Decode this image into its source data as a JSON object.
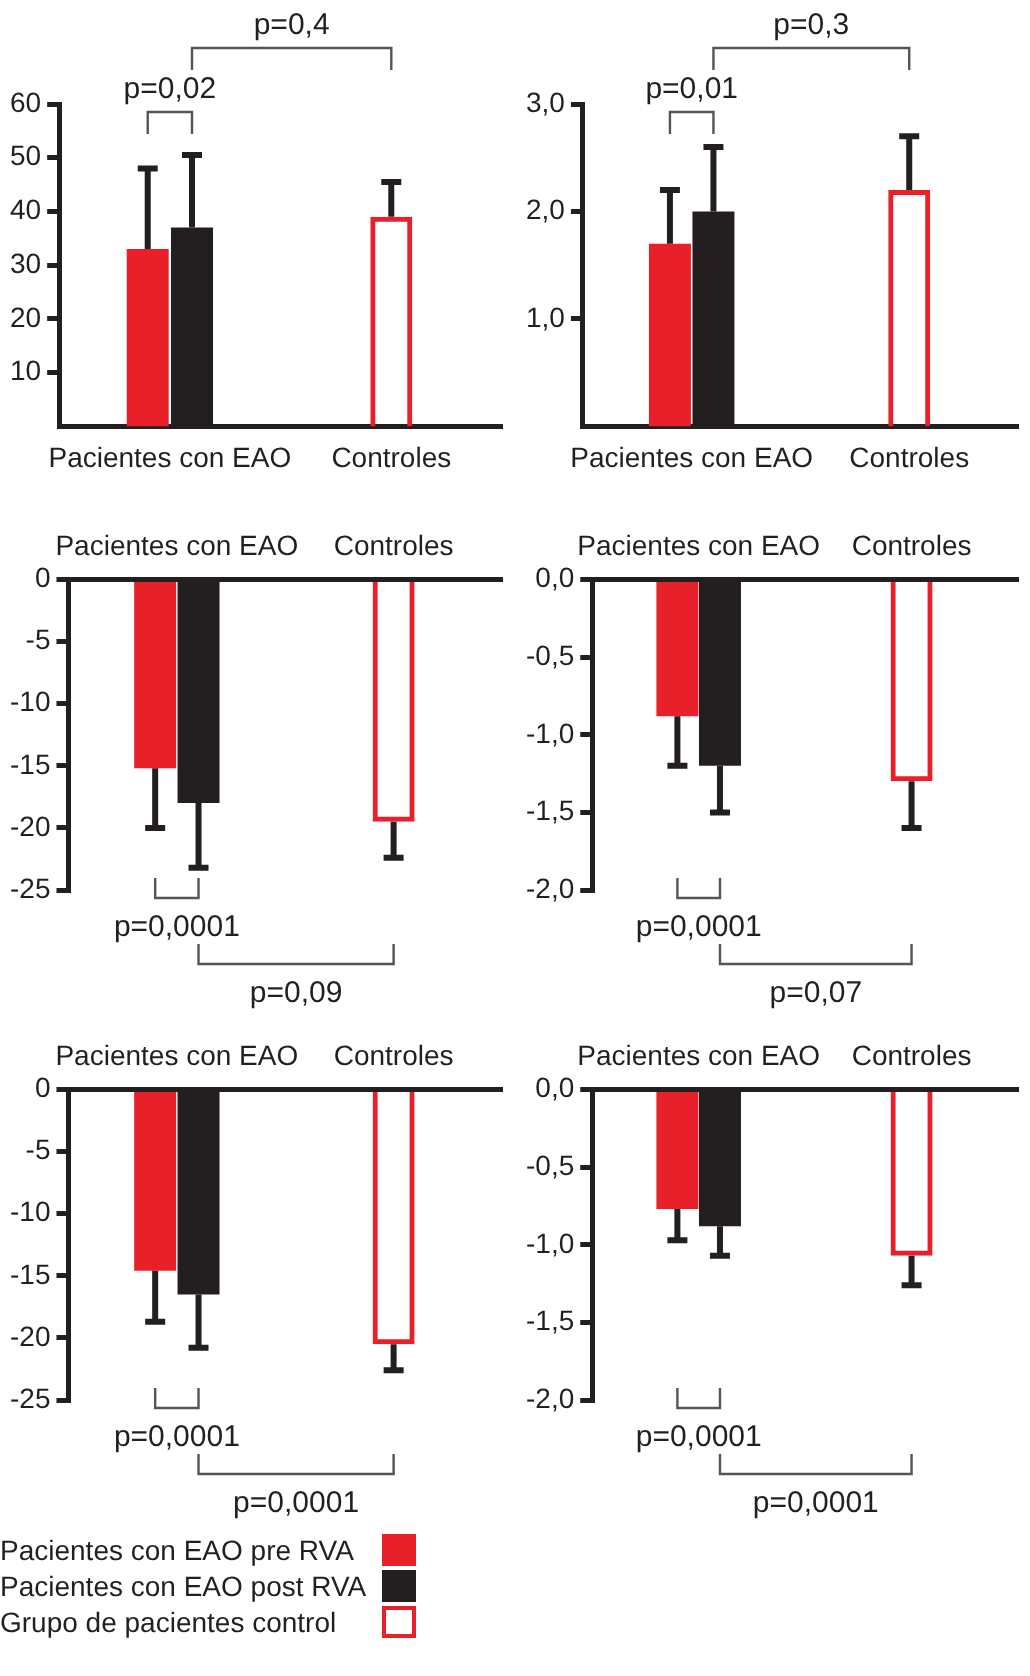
{
  "chart_data": [
    {
      "type": "bar",
      "categories": [
        "Pacientes con EAO",
        "Controles"
      ],
      "ylim": [
        0,
        60
      ],
      "yticks": [
        10,
        20,
        30,
        40,
        50,
        60
      ],
      "annotations": [
        "p=0,02",
        "p=0,4"
      ],
      "series": [
        {
          "color": "#e8202a",
          "values": [
            33,
            null
          ],
          "errors": [
            [
              33,
              48
            ],
            null
          ]
        },
        {
          "color": "#231f20",
          "values": [
            37,
            null
          ],
          "errors": [
            [
              37,
              50.5
            ],
            null
          ]
        },
        {
          "color": "#e8202a",
          "values": [
            null,
            39
          ],
          "errors": [
            null,
            [
              39,
              45.5
            ]
          ]
        }
      ]
    },
    {
      "type": "bar",
      "categories": [
        "Pacientes con EAO",
        "Controles"
      ],
      "ylim": [
        0,
        3
      ],
      "yticks": [
        {
          "value": 1,
          "label": "1,0"
        },
        {
          "value": 2,
          "label": "2,0"
        },
        {
          "value": 3,
          "label": "3,0"
        }
      ],
      "annotations": [
        "p=0,01",
        "p=0,3"
      ],
      "series": [
        {
          "color": "#e8202a",
          "values": [
            1.7,
            null
          ],
          "errors": [
            [
              1.7,
              2.2
            ],
            null
          ]
        },
        {
          "color": "#231f20",
          "values": [
            2.0,
            null
          ],
          "errors": [
            [
              2.0,
              2.6
            ],
            null
          ]
        },
        {
          "color": "#e8202a",
          "values": [
            null,
            2.2
          ],
          "errors": [
            null,
            [
              2.2,
              2.7
            ]
          ]
        }
      ]
    },
    {
      "type": "bar",
      "categories": [
        "Pacientes con EAO",
        "Controles"
      ],
      "ylim": [
        -25,
        0
      ],
      "yticks": [
        0,
        -5,
        -10,
        -15,
        -20,
        -25
      ],
      "annotations": [
        "p=0,0001",
        "p=0,09"
      ],
      "series": [
        {
          "color": "#e8202a",
          "values": [
            -15.2,
            null
          ],
          "errors": [
            [
              -20,
              -15.2
            ],
            null
          ]
        },
        {
          "color": "#231f20",
          "values": [
            -18,
            null
          ],
          "errors": [
            [
              -23.2,
              -18
            ],
            null
          ]
        },
        {
          "color": "#e8202a",
          "values": [
            null,
            -19.5
          ],
          "errors": [
            null,
            [
              -22.4,
              -19.5
            ]
          ]
        }
      ]
    },
    {
      "type": "bar",
      "categories": [
        "Pacientes con EAO",
        "Controles"
      ],
      "ylim": [
        -2,
        0
      ],
      "yticks": [
        {
          "value": 0,
          "label": "0,0"
        },
        {
          "value": -0.5,
          "label": "-0,5"
        },
        {
          "value": -1,
          "label": "-1,0"
        },
        {
          "value": -1.5,
          "label": "-1,5"
        },
        {
          "value": -2,
          "label": "-2,0"
        }
      ],
      "annotations": [
        "p=0,0001",
        "p=0,07"
      ],
      "series": [
        {
          "color": "#e8202a",
          "values": [
            -0.88,
            null
          ],
          "errors": [
            [
              -1.2,
              -0.88
            ],
            null
          ]
        },
        {
          "color": "#231f20",
          "values": [
            -1.2,
            null
          ],
          "errors": [
            [
              -1.5,
              -1.2
            ],
            null
          ]
        },
        {
          "color": "#e8202a",
          "values": [
            null,
            -1.3
          ],
          "errors": [
            null,
            [
              -1.6,
              -1.3
            ]
          ]
        }
      ]
    },
    {
      "type": "bar",
      "categories": [
        "Pacientes con EAO",
        "Controles"
      ],
      "ylim": [
        -25,
        0
      ],
      "yticks": [
        0,
        -5,
        -10,
        -15,
        -20,
        -25
      ],
      "annotations": [
        "p=0,0001",
        "p=0,0001"
      ],
      "legend": "bottom",
      "series": [
        {
          "name": "Pacientes con EAO pre RVA",
          "color": "#e8202a",
          "values": [
            -14.6,
            null
          ],
          "errors": [
            [
              -18.7,
              -14.6
            ],
            null
          ]
        },
        {
          "name": "Pacientes con EAO post RVA",
          "color": "#231f20",
          "values": [
            -16.5,
            null
          ],
          "errors": [
            [
              -20.8,
              -16.5
            ],
            null
          ]
        },
        {
          "name": "Grupo de pacientes control",
          "color": "#e8202a",
          "values": [
            null,
            -20.5
          ],
          "errors": [
            null,
            [
              -22.6,
              -20.5
            ]
          ]
        }
      ]
    },
    {
      "type": "bar",
      "categories": [
        "Pacientes con EAO",
        "Controles"
      ],
      "ylim": [
        -2,
        0
      ],
      "yticks": [
        {
          "value": 0,
          "label": "0,0"
        },
        {
          "value": -0.5,
          "label": "-0,5"
        },
        {
          "value": -1,
          "label": "-1,0"
        },
        {
          "value": -1.5,
          "label": "-1,5"
        },
        {
          "value": -2,
          "label": "-2,0"
        }
      ],
      "annotations": [
        "p=0,0001",
        "p=0,0001"
      ],
      "series": [
        {
          "color": "#e8202a",
          "values": [
            -0.77,
            null
          ],
          "errors": [
            [
              -0.97,
              -0.77
            ],
            null
          ]
        },
        {
          "color": "#231f20",
          "values": [
            -0.88,
            null
          ],
          "errors": [
            [
              -1.07,
              -0.88
            ],
            null
          ]
        },
        {
          "color": "#e8202a",
          "values": [
            null,
            -1.07
          ],
          "errors": [
            null,
            [
              -1.26,
              -1.07
            ]
          ]
        }
      ]
    }
  ]
}
